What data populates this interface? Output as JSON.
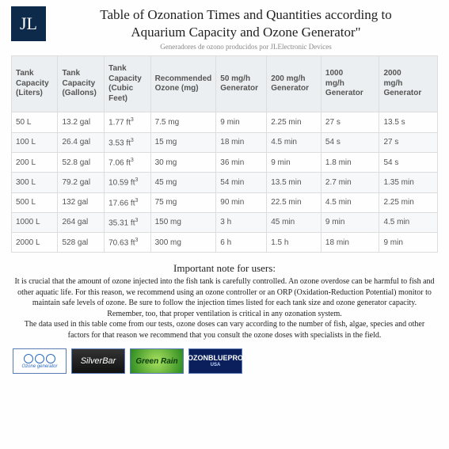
{
  "header": {
    "logo_text": "JL",
    "title_line1": "Table of Ozonation Times and Quantities according to",
    "title_line2": "Aquarium Capacity and Ozone Generator\"",
    "subtitle": "Generadores de ozono producidos por JLElectronic Devices"
  },
  "table": {
    "columns": [
      "Tank Capacity (Liters)",
      "Tank Capacity (Gallons)",
      "Tank Capacity (Cubic Feet)",
      "Recommended Ozone (mg)",
      "50 mg/h Generator",
      "200 mg/h Generator",
      "1000 mg/h Generator",
      "2000 mg/h Generator"
    ],
    "rows": [
      [
        "50 L",
        "13.2 gal",
        "1.77 ft³",
        "7.5 mg",
        "9 min",
        "2.25 min",
        "27 s",
        "13.5 s"
      ],
      [
        "100 L",
        "26.4 gal",
        "3.53 ft³",
        "15 mg",
        "18 min",
        "4.5 min",
        "54 s",
        "27 s"
      ],
      [
        "200 L",
        "52.8 gal",
        "7.06 ft³",
        "30 mg",
        "36 min",
        "9 min",
        "1.8 min",
        "54 s"
      ],
      [
        "300 L",
        "79.2 gal",
        "10.59 ft³",
        "45 mg",
        "54 min",
        "13.5 min",
        "2.7 min",
        "1.35 min"
      ],
      [
        "500 L",
        "132 gal",
        "17.66 ft³",
        "75 mg",
        "90 min",
        "22.5 min",
        "4.5 min",
        "2.25 min"
      ],
      [
        "1000 L",
        "264 gal",
        "35.31 ft³",
        "150 mg",
        "3 h",
        "45 min",
        "9 min",
        "4.5 min"
      ],
      [
        "2000 L",
        "528 gal",
        "70.63 ft³",
        "300 mg",
        "6 h",
        "1.5 h",
        "18 min",
        "9 min"
      ]
    ],
    "col_widths": [
      "11%",
      "11%",
      "11%",
      "14%",
      "12%",
      "13%",
      "14%",
      "14%"
    ],
    "header_bg": "#eceff1",
    "border_color": "#dddddd",
    "row_even_bg": "#f7f8f9",
    "text_color": "#555555",
    "font_size_pt": 10
  },
  "note": {
    "title": "Important note for users:",
    "body": "It is crucial that the amount of ozone injected into the fish tank is carefully controlled. An ozone overdose can be harmful to fish and other aquatic life. For this reason, we recommend using an ozone controller or an ORP (Oxidation-Reduction Potential) monitor to maintain safe levels of ozone. Be sure to follow the injection times listed for each tank size and ozone generator capacity. Remember, too, that proper ventilation is critical in any ozonation system.\nThe data used in this table come from our tests, ozone doses can vary according to the number of fish, algae, species and other factors for that reason we recommend that you consult the ozone doses with specialists in the field."
  },
  "brands": {
    "items": [
      {
        "name": "ozone-generator",
        "label": "Ozone generator",
        "colors": {
          "bg": "#ffffff",
          "fg": "#2a6ac2"
        }
      },
      {
        "name": "silverbar",
        "label": "SilverBar",
        "colors": {
          "bg": "#222222",
          "fg": "#ffffff"
        }
      },
      {
        "name": "green-rain",
        "label": "Green Rain",
        "colors": {
          "bg": "#58b52e",
          "fg": "#0a3a0a"
        }
      },
      {
        "name": "ozonbluepro",
        "label": "OZONBLUEPRO",
        "sub": "USA",
        "colors": {
          "bg": "#0a1f5c",
          "fg": "#ffffff"
        }
      }
    ]
  },
  "colors": {
    "logo_bg": "#0e2a4a",
    "page_bg": "#fefefe",
    "title_color": "#222222",
    "subtitle_color": "#888888",
    "brand_border": "#5b7bb5"
  }
}
